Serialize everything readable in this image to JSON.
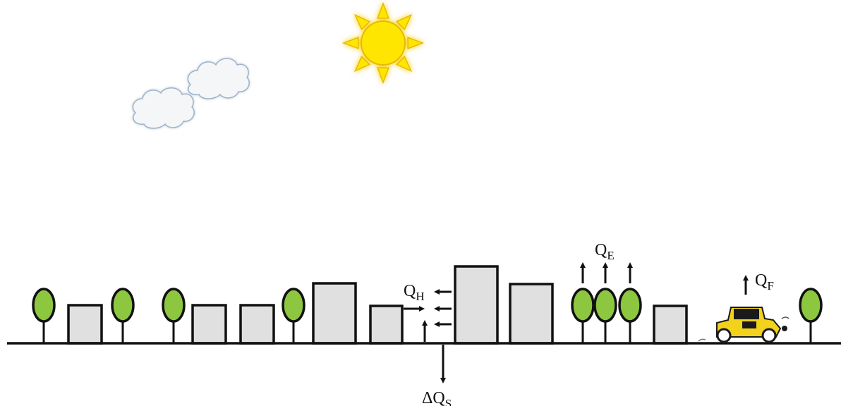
{
  "labels": {
    "qh": {
      "main": "Q",
      "sub": "H"
    },
    "qe": {
      "main": "Q",
      "sub": "E"
    },
    "qf": {
      "main": "Q",
      "sub": "F"
    },
    "dqs": {
      "prefix": "ΔQ",
      "sub": "S"
    }
  },
  "colors": {
    "sun_fill": "#FFE600",
    "sun_glow": "#FFD84D",
    "cloud_fill": "#F4F6F8",
    "cloud_stroke": "#9FB3C8",
    "tree_fill": "#8DC63F",
    "building_fill": "#E0E0E0",
    "stroke": "#111111",
    "car_body": "#F2D21B",
    "car_dark": "#1A1A1A"
  },
  "icons": [
    "sun-icon",
    "cloud-icon",
    "tree-icon",
    "building-icon",
    "car-icon",
    "arrow-icon"
  ]
}
